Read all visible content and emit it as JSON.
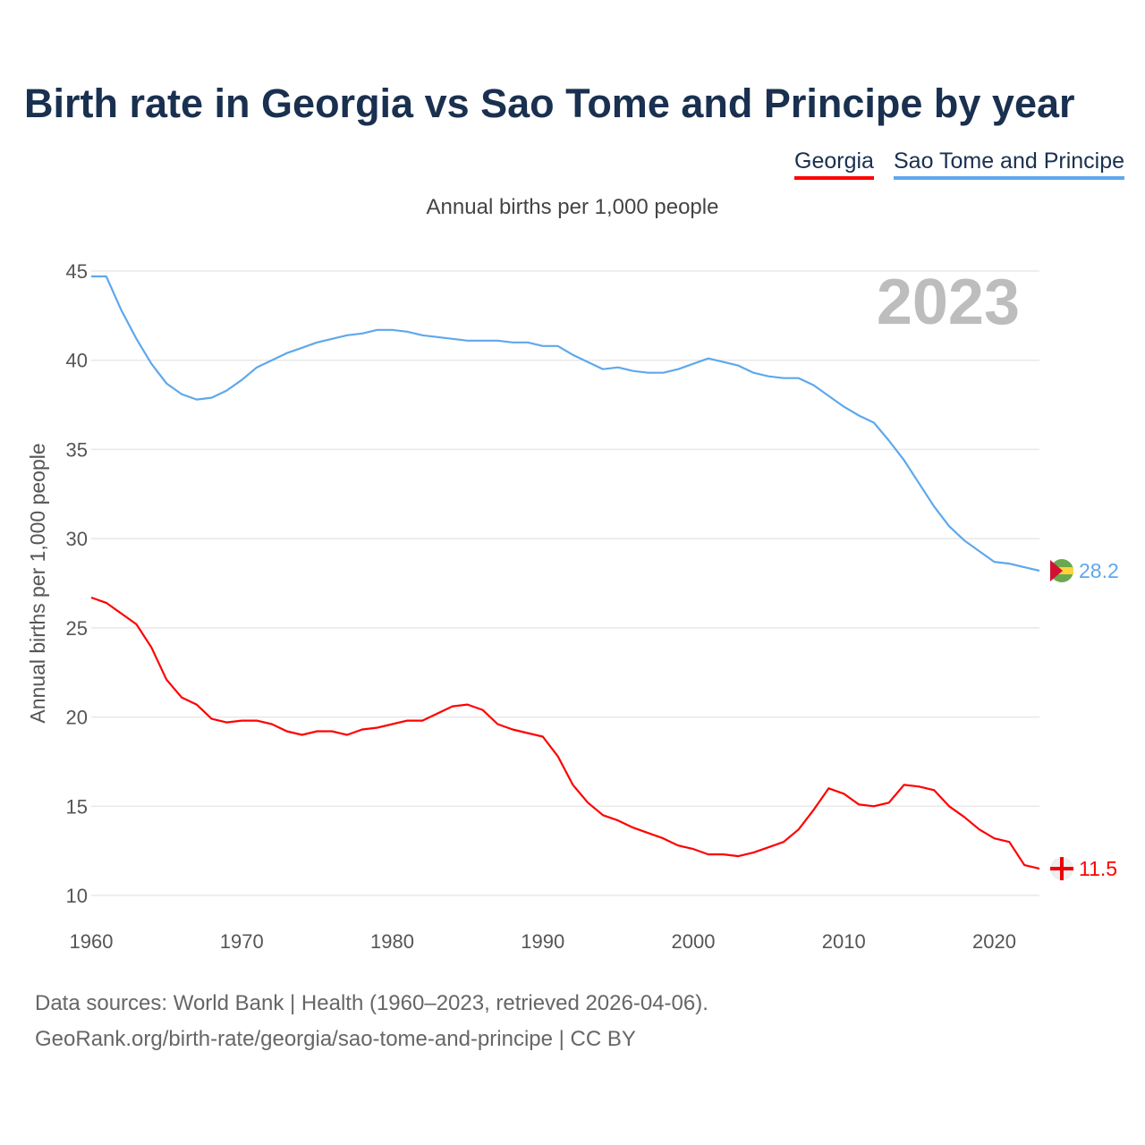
{
  "chart_data": {
    "type": "line",
    "title": "Birth rate in Georgia vs Sao Tome and Principe by year",
    "subtitle": "Annual births per 1,000 people",
    "ylabel": "Annual births per 1,000 people",
    "xlabel": "",
    "xlim": [
      1960,
      2023
    ],
    "ylim": [
      10,
      45
    ],
    "yticks": [
      10,
      15,
      20,
      25,
      30,
      35,
      40,
      45
    ],
    "xticks": [
      1960,
      1970,
      1980,
      1990,
      2000,
      2010,
      2020
    ],
    "grid": true,
    "legend_position": "top-right",
    "year_label": "2023",
    "x_start": 1960,
    "series": [
      {
        "name": "Georgia",
        "color": "#ff0000",
        "end_label": "11.5",
        "values": [
          26.7,
          26.4,
          25.8,
          25.2,
          23.9,
          22.1,
          21.1,
          20.7,
          19.9,
          19.7,
          19.8,
          19.8,
          19.6,
          19.2,
          19.0,
          19.2,
          19.2,
          19.0,
          19.3,
          19.4,
          19.6,
          19.8,
          19.8,
          20.2,
          20.6,
          20.7,
          20.4,
          19.6,
          19.3,
          19.1,
          18.9,
          17.8,
          16.2,
          15.2,
          14.5,
          14.2,
          13.8,
          13.5,
          13.2,
          12.8,
          12.6,
          12.3,
          12.3,
          12.2,
          12.4,
          12.7,
          13.0,
          13.7,
          14.8,
          16.0,
          15.7,
          15.1,
          15.0,
          15.2,
          16.2,
          16.1,
          15.9,
          15.0,
          14.4,
          13.7,
          13.2,
          13.0,
          11.7,
          11.5
        ]
      },
      {
        "name": "Sao Tome and Principe",
        "color": "#5ea8ec",
        "end_label": "28.2",
        "values": [
          44.7,
          44.7,
          42.8,
          41.2,
          39.8,
          38.7,
          38.1,
          37.8,
          37.9,
          38.3,
          38.9,
          39.6,
          40.0,
          40.4,
          40.7,
          41.0,
          41.2,
          41.4,
          41.5,
          41.7,
          41.7,
          41.6,
          41.4,
          41.3,
          41.2,
          41.1,
          41.1,
          41.1,
          41.0,
          41.0,
          40.8,
          40.8,
          40.3,
          39.9,
          39.5,
          39.6,
          39.4,
          39.3,
          39.3,
          39.5,
          39.8,
          40.1,
          39.9,
          39.7,
          39.3,
          39.1,
          39.0,
          39.0,
          38.6,
          38.0,
          37.4,
          36.9,
          36.5,
          35.5,
          34.4,
          33.1,
          31.8,
          30.7,
          29.9,
          29.3,
          28.7,
          28.6,
          28.4,
          28.2
        ]
      }
    ]
  },
  "footer": {
    "line1": "Data sources: World Bank | Health (1960–2023, retrieved 2026-04-06).",
    "line2": "GeoRank.org/birth-rate/georgia/sao-tome-and-principe | CC BY"
  }
}
